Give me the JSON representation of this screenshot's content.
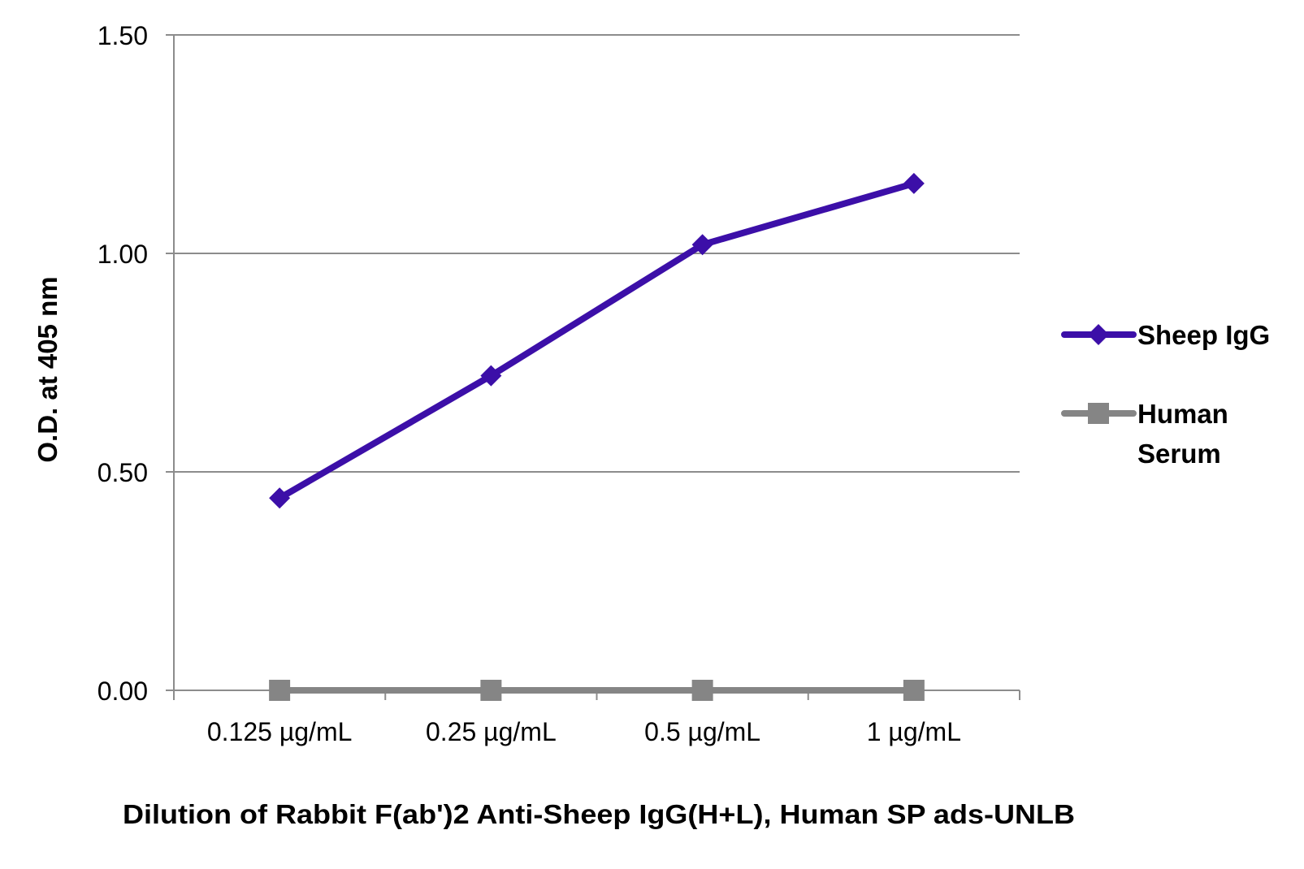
{
  "chart_data": {
    "type": "line",
    "title": "",
    "xlabel": "Dilution of Rabbit F(ab')2 Anti-Sheep IgG(H+L), Human SP ads-UNLB",
    "ylabel": "O.D. at 405 nm",
    "categories": [
      "0.125 µg/mL",
      "0.25 µg/mL",
      "0.5 µg/mL",
      "1 µg/mL"
    ],
    "ylim": [
      0,
      1.5
    ],
    "yticks": [
      "0.00",
      "0.50",
      "1.00",
      "1.50"
    ],
    "grid": true,
    "legend_position": "right",
    "series": [
      {
        "name": "Sheep IgG",
        "values": [
          0.44,
          0.72,
          1.02,
          1.16
        ],
        "color": "#3c0fa8",
        "marker": "diamond"
      },
      {
        "name": "Human Serum",
        "values": [
          0.0,
          0.0,
          0.0,
          0.0
        ],
        "color": "#858585",
        "marker": "square"
      }
    ]
  },
  "colors": {
    "grid": "#8c8c8c",
    "axis": "#8c8c8c",
    "text": "#000000"
  }
}
